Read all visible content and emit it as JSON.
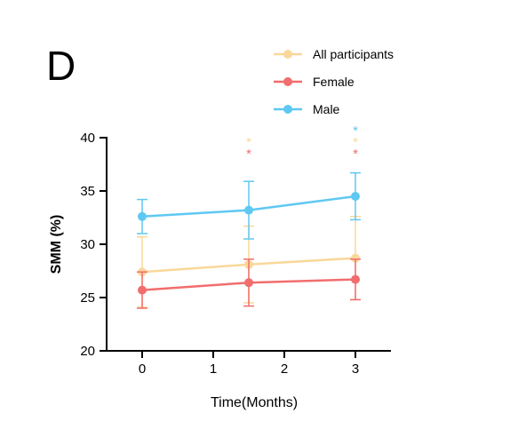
{
  "panel_label": "D",
  "chart_data": {
    "type": "line",
    "xlabel": "Time(Months)",
    "ylabel": "SMM (%)",
    "xlim": [
      -0.5,
      3.5
    ],
    "ylim": [
      20,
      40
    ],
    "xticks": [
      0,
      1,
      2,
      3
    ],
    "yticks": [
      20,
      25,
      30,
      35,
      40
    ],
    "grid": false,
    "legend_position": "top-right",
    "series": [
      {
        "name": "All participants",
        "color": "#f9d899",
        "x": [
          0,
          1.5,
          3
        ],
        "y": [
          27.4,
          28.1,
          28.7
        ],
        "err": [
          3.3,
          3.6,
          3.9
        ],
        "significance": [
          "",
          "*",
          "*"
        ]
      },
      {
        "name": "Female",
        "color": "#f26d6d",
        "x": [
          0,
          1.5,
          3
        ],
        "y": [
          25.7,
          26.4,
          26.7
        ],
        "err": [
          1.7,
          2.2,
          1.9
        ],
        "significance": [
          "",
          "*",
          "*"
        ]
      },
      {
        "name": "Male",
        "color": "#5ec8f2",
        "x": [
          0,
          1.5,
          3
        ],
        "y": [
          32.6,
          33.2,
          34.5
        ],
        "err": [
          1.6,
          2.7,
          2.2
        ],
        "significance": [
          "",
          "",
          "*"
        ]
      }
    ]
  }
}
